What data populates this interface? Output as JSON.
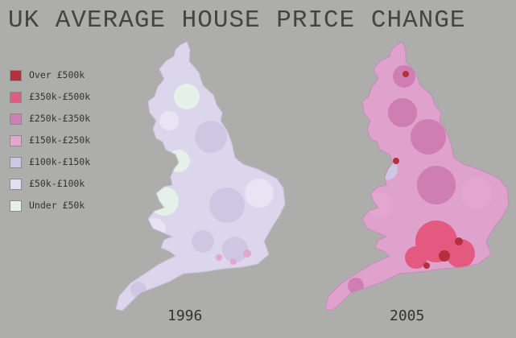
{
  "title": "UK AVERAGE HOUSE PRICE CHANGE",
  "legend": [
    {
      "label": "Over £500k",
      "color": "#b4303f"
    },
    {
      "label": "£350k-£500k",
      "color": "#e4597f"
    },
    {
      "label": "£250k-£350k",
      "color": "#cf7eb4"
    },
    {
      "label": "£150k-£250k",
      "color": "#e3a6cf"
    },
    {
      "label": "£100k-£150k",
      "color": "#cec6e2"
    },
    {
      "label": "£50k-£100k",
      "color": "#e2def0"
    },
    {
      "label": "Under £50k",
      "color": "#e4f0e8"
    }
  ],
  "maps": [
    {
      "year": "1996",
      "base_color": "#dcd6ec",
      "patch_colors": [
        "#cec6e2",
        "#e4f0e8",
        "#e8e4f3",
        "#e3a6cf"
      ]
    },
    {
      "year": "2005",
      "base_color": "#dea2cd",
      "patch_colors": [
        "#cf7eb4",
        "#e3a6cf",
        "#e4597f",
        "#b4303f",
        "#cec6e2"
      ]
    }
  ]
}
